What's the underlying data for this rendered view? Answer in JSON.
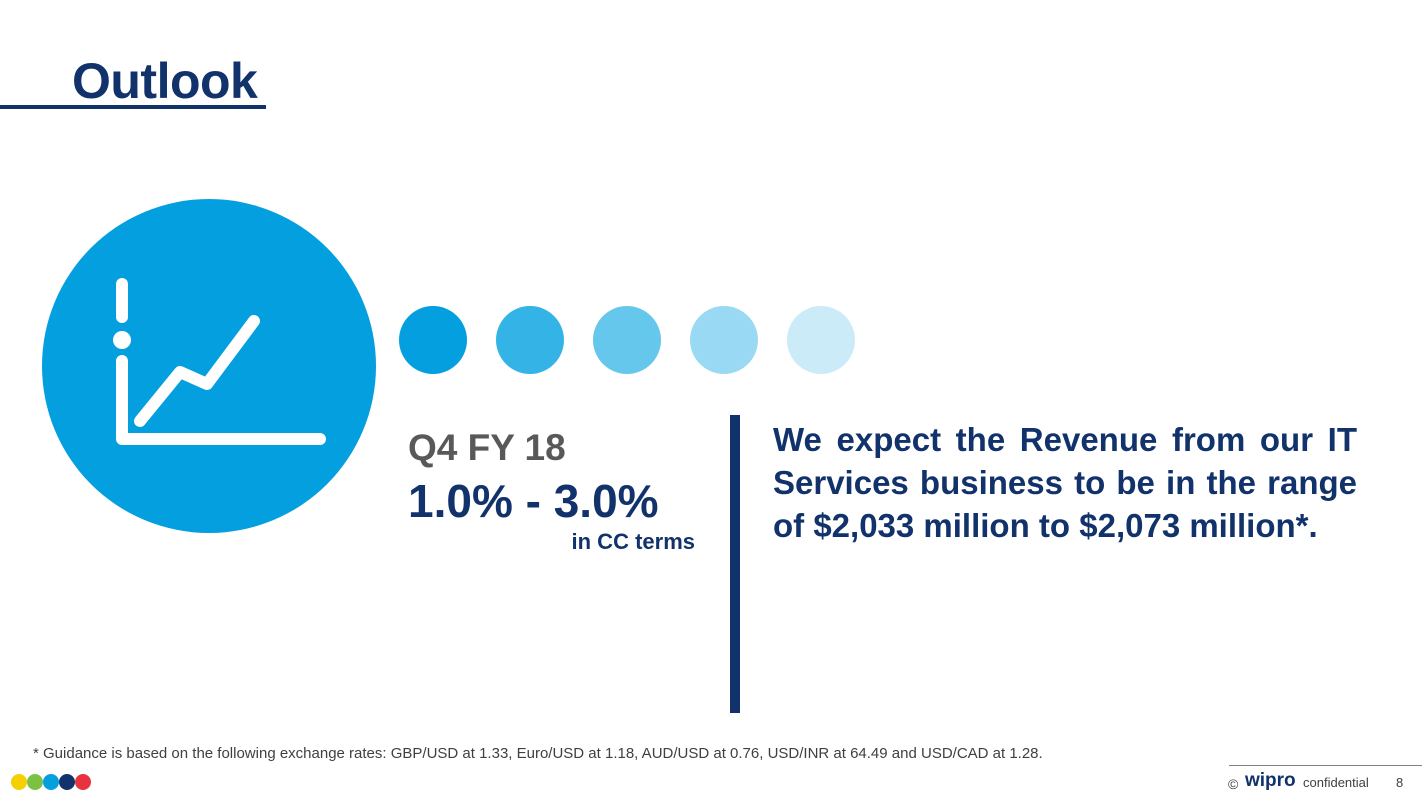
{
  "slide": {
    "title": "Outlook",
    "icon": "growth-chart-icon",
    "period": "Q4 FY 18",
    "guidance_range": "1.0% - 3.0%",
    "cc_terms": "in CC terms",
    "statement": "We expect the Revenue from our IT Services business to be in the range of $2,033 million to $2,073 million*.",
    "footnote": "* Guidance is based on the following exchange rates: GBP/USD at 1.33, Euro/USD at 1.18, AUD/USD at 0.76, USD/INR at 64.49 and USD/CAD at 1.28."
  },
  "footer": {
    "copyright": "©",
    "brand": "wipro",
    "confidential": "confidential",
    "page_number": "8"
  },
  "colors": {
    "navy": "#12326b",
    "blue": "#049fdf",
    "gray": "#595959",
    "dot_shades": [
      "#049fdf",
      "#33b3e6",
      "#66c7ed",
      "#99d9f3",
      "#ccebf9"
    ],
    "brand_dots": [
      "#f5d000",
      "#7cc242",
      "#049fdf",
      "#12326b",
      "#e8333e"
    ]
  }
}
